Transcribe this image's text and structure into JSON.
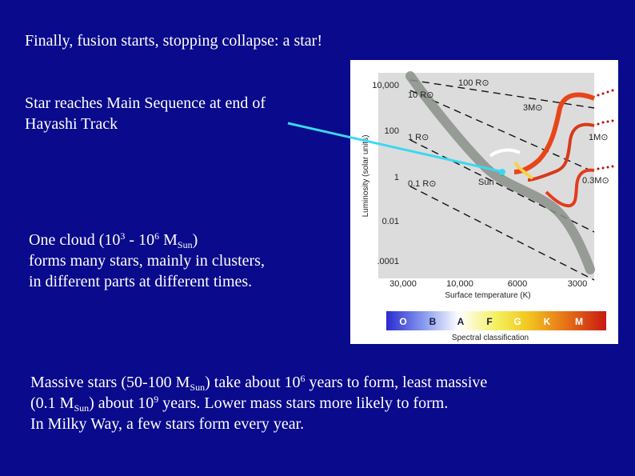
{
  "slide": {
    "title": "Finally, fusion starts, stopping collapse: a star!",
    "note_line1": "Star reaches Main Sequence at end of",
    "note_line2": "Hayashi Track",
    "cloud": {
      "a": "One cloud (10",
      "e1": "3",
      "b": " - 10",
      "e2": "6",
      "c": " M",
      "sub": "Sun",
      "d": ")",
      "line2": "forms many stars, mainly in clusters,",
      "line3": "in different parts at different times."
    },
    "massive": {
      "a": "Massive stars (50-100 M",
      "sub1": "Sun",
      "b": ") take about 10",
      "e1": "6",
      "c": " years to form, least massive",
      "d": "(0.1 M",
      "sub2": "Sun",
      "e": ") about 10",
      "e2": "9",
      "f": " years.  Lower mass stars more likely to form.",
      "line3": "In Milky Way, a few stars form every year."
    }
  },
  "diagram": {
    "y_axis_label": "Luminosity (solar units)",
    "y_ticks": [
      "10,000",
      "100",
      "1",
      "0.01",
      ".0001"
    ],
    "x_axis_label": "Surface temperature (K)",
    "x_ticks": [
      "30,000",
      "10,000",
      "6000",
      "3000"
    ],
    "radius_labels": [
      "100 R⊙",
      "10 R⊙",
      "1 R⊙",
      "0.1 R⊙"
    ],
    "mass_labels": [
      "3M⊙",
      "1M⊙",
      "0.3M⊙"
    ],
    "sun_label": "Sun",
    "spectral_classes": [
      "O",
      "B",
      "A",
      "F",
      "G",
      "K",
      "M"
    ],
    "spectral_caption": "Spectral classification",
    "colors": {
      "plot_bg": "#dcdcdc",
      "main_sequence": "#8a8f8a",
      "track_3": "#e8451a",
      "track_1": "#d63a1a",
      "track_03": "#e23c1e",
      "pointer": "#3ad8f0"
    }
  }
}
